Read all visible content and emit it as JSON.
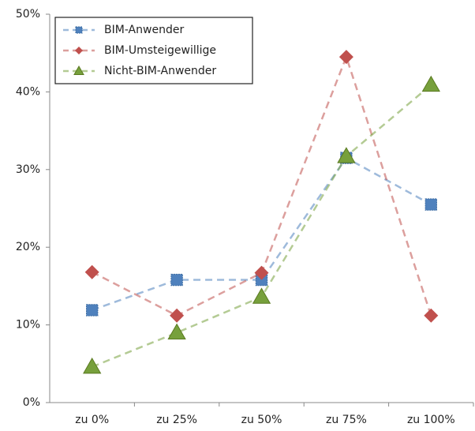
{
  "chart_data": {
    "type": "line",
    "categories": [
      "zu 0%",
      "zu 25%",
      "zu 50%",
      "zu 75%",
      "zu 100%"
    ],
    "series": [
      {
        "name": "BIM-Anwender",
        "color": "#4f81bd",
        "marker": "square",
        "values": [
          11.9,
          15.8,
          15.8,
          31.5,
          25.5
        ]
      },
      {
        "name": "BIM-Umsteigewillige",
        "color": "#c0504d",
        "marker": "diamond",
        "values": [
          16.8,
          11.2,
          16.7,
          44.5,
          11.2
        ]
      },
      {
        "name": "Nicht-BIM-Anwender",
        "color": "#77a03c",
        "marker": "triangle",
        "values": [
          4.6,
          9.0,
          13.6,
          31.7,
          40.9
        ]
      }
    ],
    "ylim": [
      0,
      50
    ],
    "yticks": [
      {
        "value": 0,
        "label": "0%"
      },
      {
        "value": 10,
        "label": "10%"
      },
      {
        "value": 20,
        "label": "20%"
      },
      {
        "value": 30,
        "label": "30%"
      },
      {
        "value": 40,
        "label": "40%"
      },
      {
        "value": 50,
        "label": "50%"
      }
    ],
    "grid": false,
    "legend": "upper left"
  }
}
